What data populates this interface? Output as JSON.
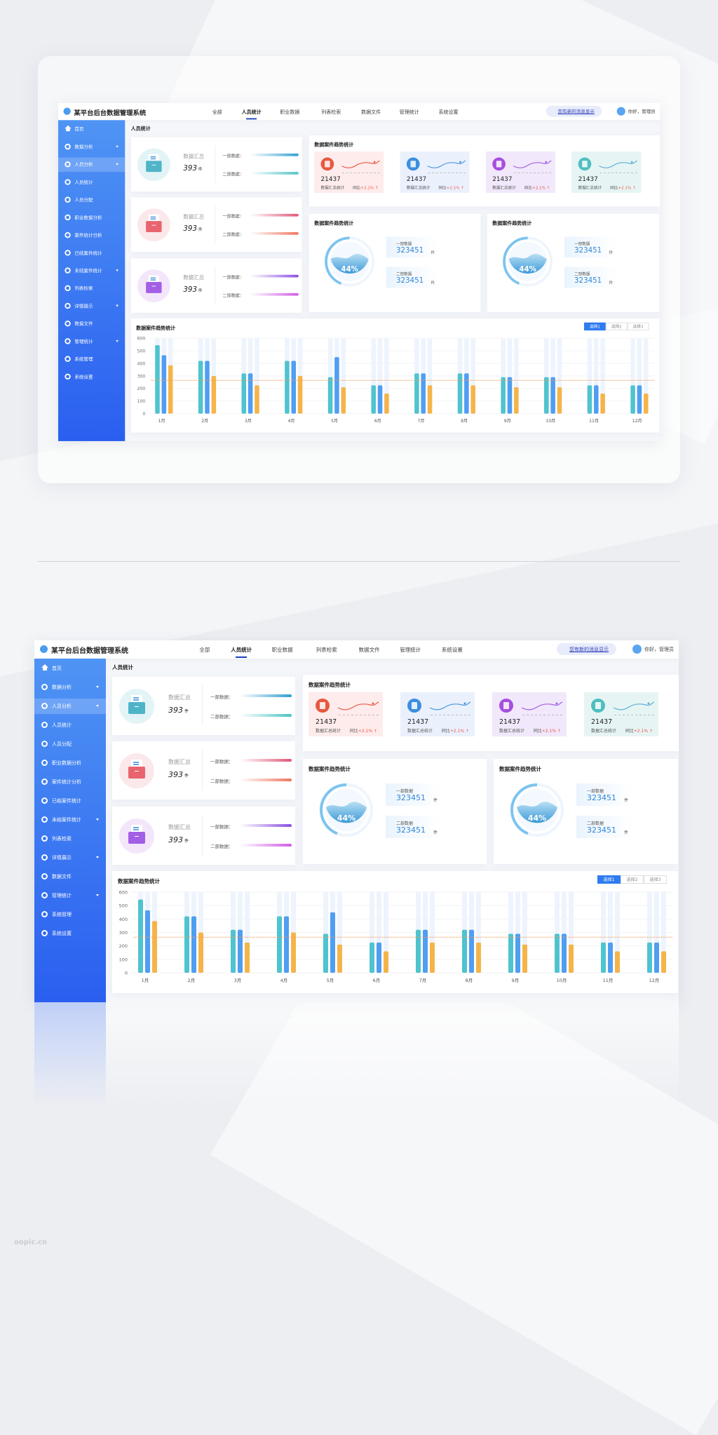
{
  "app": {
    "title": "某平台后台数据管理系统",
    "notice": "您有新的消息显示",
    "user": "你好，管理员"
  },
  "nav": [
    {
      "label": "全部"
    },
    {
      "label": "人员统计",
      "active": true
    },
    {
      "label": "职业数据"
    },
    {
      "label": "列表检索"
    },
    {
      "label": "数据文件"
    },
    {
      "label": "管理统计"
    },
    {
      "label": "系统设置"
    }
  ],
  "sidebar": [
    {
      "label": "首页",
      "icon": "home-icon"
    },
    {
      "label": "数据分析",
      "icon": "gear-icon",
      "caret": true
    },
    {
      "label": "人员分析",
      "icon": "gear-icon",
      "caret": true,
      "active": true
    },
    {
      "label": "人员统计",
      "icon": "gear-icon"
    },
    {
      "label": "人员分配",
      "icon": "gear-icon"
    },
    {
      "label": "职业数据分析",
      "icon": "gear-icon"
    },
    {
      "label": "案件统计分析",
      "icon": "gear-icon"
    },
    {
      "label": "已结案件统计",
      "icon": "gear-icon"
    },
    {
      "label": "未结案件统计",
      "icon": "gear-icon",
      "caret": true
    },
    {
      "label": "列表检索",
      "icon": "gear-icon"
    },
    {
      "label": "详情展示",
      "icon": "gear-icon",
      "caret": true
    },
    {
      "label": "数据文件",
      "icon": "gear-icon"
    },
    {
      "label": "管理统计",
      "icon": "gear-icon",
      "caret": true
    },
    {
      "label": "系统管理",
      "icon": "gear-icon"
    },
    {
      "label": "系统设置",
      "icon": "gear-icon"
    }
  ],
  "page_title": "人员统计",
  "summary_cards": [
    {
      "label": "数据汇总",
      "value": "393",
      "unit": "件",
      "row1": "一部数据：",
      "row2": "二部数据：",
      "color": "#4fb4c8",
      "bg": "#e3f4f6",
      "bar1": "#2f9fd0",
      "bar2": "#4cc4c4"
    },
    {
      "label": "数据汇总",
      "value": "393",
      "unit": "件",
      "row1": "一部数据：",
      "row2": "二部数据：",
      "color": "#e8646e",
      "bg": "#fbe8ea",
      "bar1": "#e05778",
      "bar2": "#ee7660"
    },
    {
      "label": "数据汇总",
      "value": "393",
      "unit": "件",
      "row1": "一部数据：",
      "row2": "二部数据：",
      "color": "#a35ee6",
      "bg": "#f3e6fb",
      "bar1": "#8a4fe0",
      "bar2": "#d25ce6"
    }
  ],
  "trend_panel": {
    "title": "数据案件趋势统计",
    "cards": [
      {
        "value": "21437",
        "label": "数据汇总统计",
        "yoy_label": "同比",
        "yoy": "+2.1%",
        "bg": "#fdeceb",
        "color": "#e9573f",
        "line": "#ea5a4a"
      },
      {
        "value": "21437",
        "label": "数据汇总统计",
        "yoy_label": "同比",
        "yoy": "+2.1%",
        "bg": "#eaf1fd",
        "color": "#3b8ee0",
        "line": "#4a95dd"
      },
      {
        "value": "21437",
        "label": "数据汇总统计",
        "yoy_label": "同比",
        "yoy": "+2.1%",
        "bg": "#f1e8fb",
        "color": "#a64fe0",
        "line": "#a45ee0"
      },
      {
        "value": "21437",
        "label": "数据汇总统计",
        "yoy_label": "同比",
        "yoy": "+2.1%",
        "bg": "#e6f5f4",
        "color": "#4fbfc0",
        "line": "#5ab0d0"
      }
    ]
  },
  "donut_panels": [
    {
      "title": "数据案件趋势统计",
      "percent": 44,
      "percent_label": "44%",
      "items": [
        {
          "label": "一部数据",
          "value": "323451",
          "unit": "件"
        },
        {
          "label": "二部数据",
          "value": "323451",
          "unit": "件"
        }
      ]
    },
    {
      "title": "数据案件趋势统计",
      "percent": 44,
      "percent_label": "44%",
      "items": [
        {
          "label": "一部数据",
          "value": "323451",
          "unit": "件"
        },
        {
          "label": "二部数据",
          "value": "323451",
          "unit": "件"
        }
      ]
    }
  ],
  "chart_data": {
    "type": "bar",
    "title": "数据案件趋势统计",
    "categories": [
      "1月",
      "2月",
      "3月",
      "4月",
      "5月",
      "6月",
      "7月",
      "8月",
      "9月",
      "10月",
      "11月",
      "12月"
    ],
    "series": [
      {
        "values": [
          545,
          420,
          320,
          420,
          290,
          225,
          320,
          320,
          290,
          290,
          225,
          225
        ],
        "color": "#4fc3cf"
      },
      {
        "values": [
          465,
          420,
          320,
          420,
          450,
          225,
          320,
          320,
          290,
          290,
          225,
          225
        ],
        "color": "#4f9ef2"
      },
      {
        "values": [
          385,
          300,
          225,
          300,
          210,
          160,
          225,
          225,
          210,
          210,
          160,
          160
        ],
        "color": "#f5b44a"
      }
    ],
    "reference_line": 265,
    "yticks": [
      0,
      100,
      200,
      300,
      400,
      500,
      600
    ],
    "ylim": [
      0,
      600
    ],
    "grid": true,
    "options": [
      {
        "label": "选择1",
        "active": true
      },
      {
        "label": "选择2"
      },
      {
        "label": "选择3"
      }
    ]
  },
  "watermark": "oopic.cn"
}
